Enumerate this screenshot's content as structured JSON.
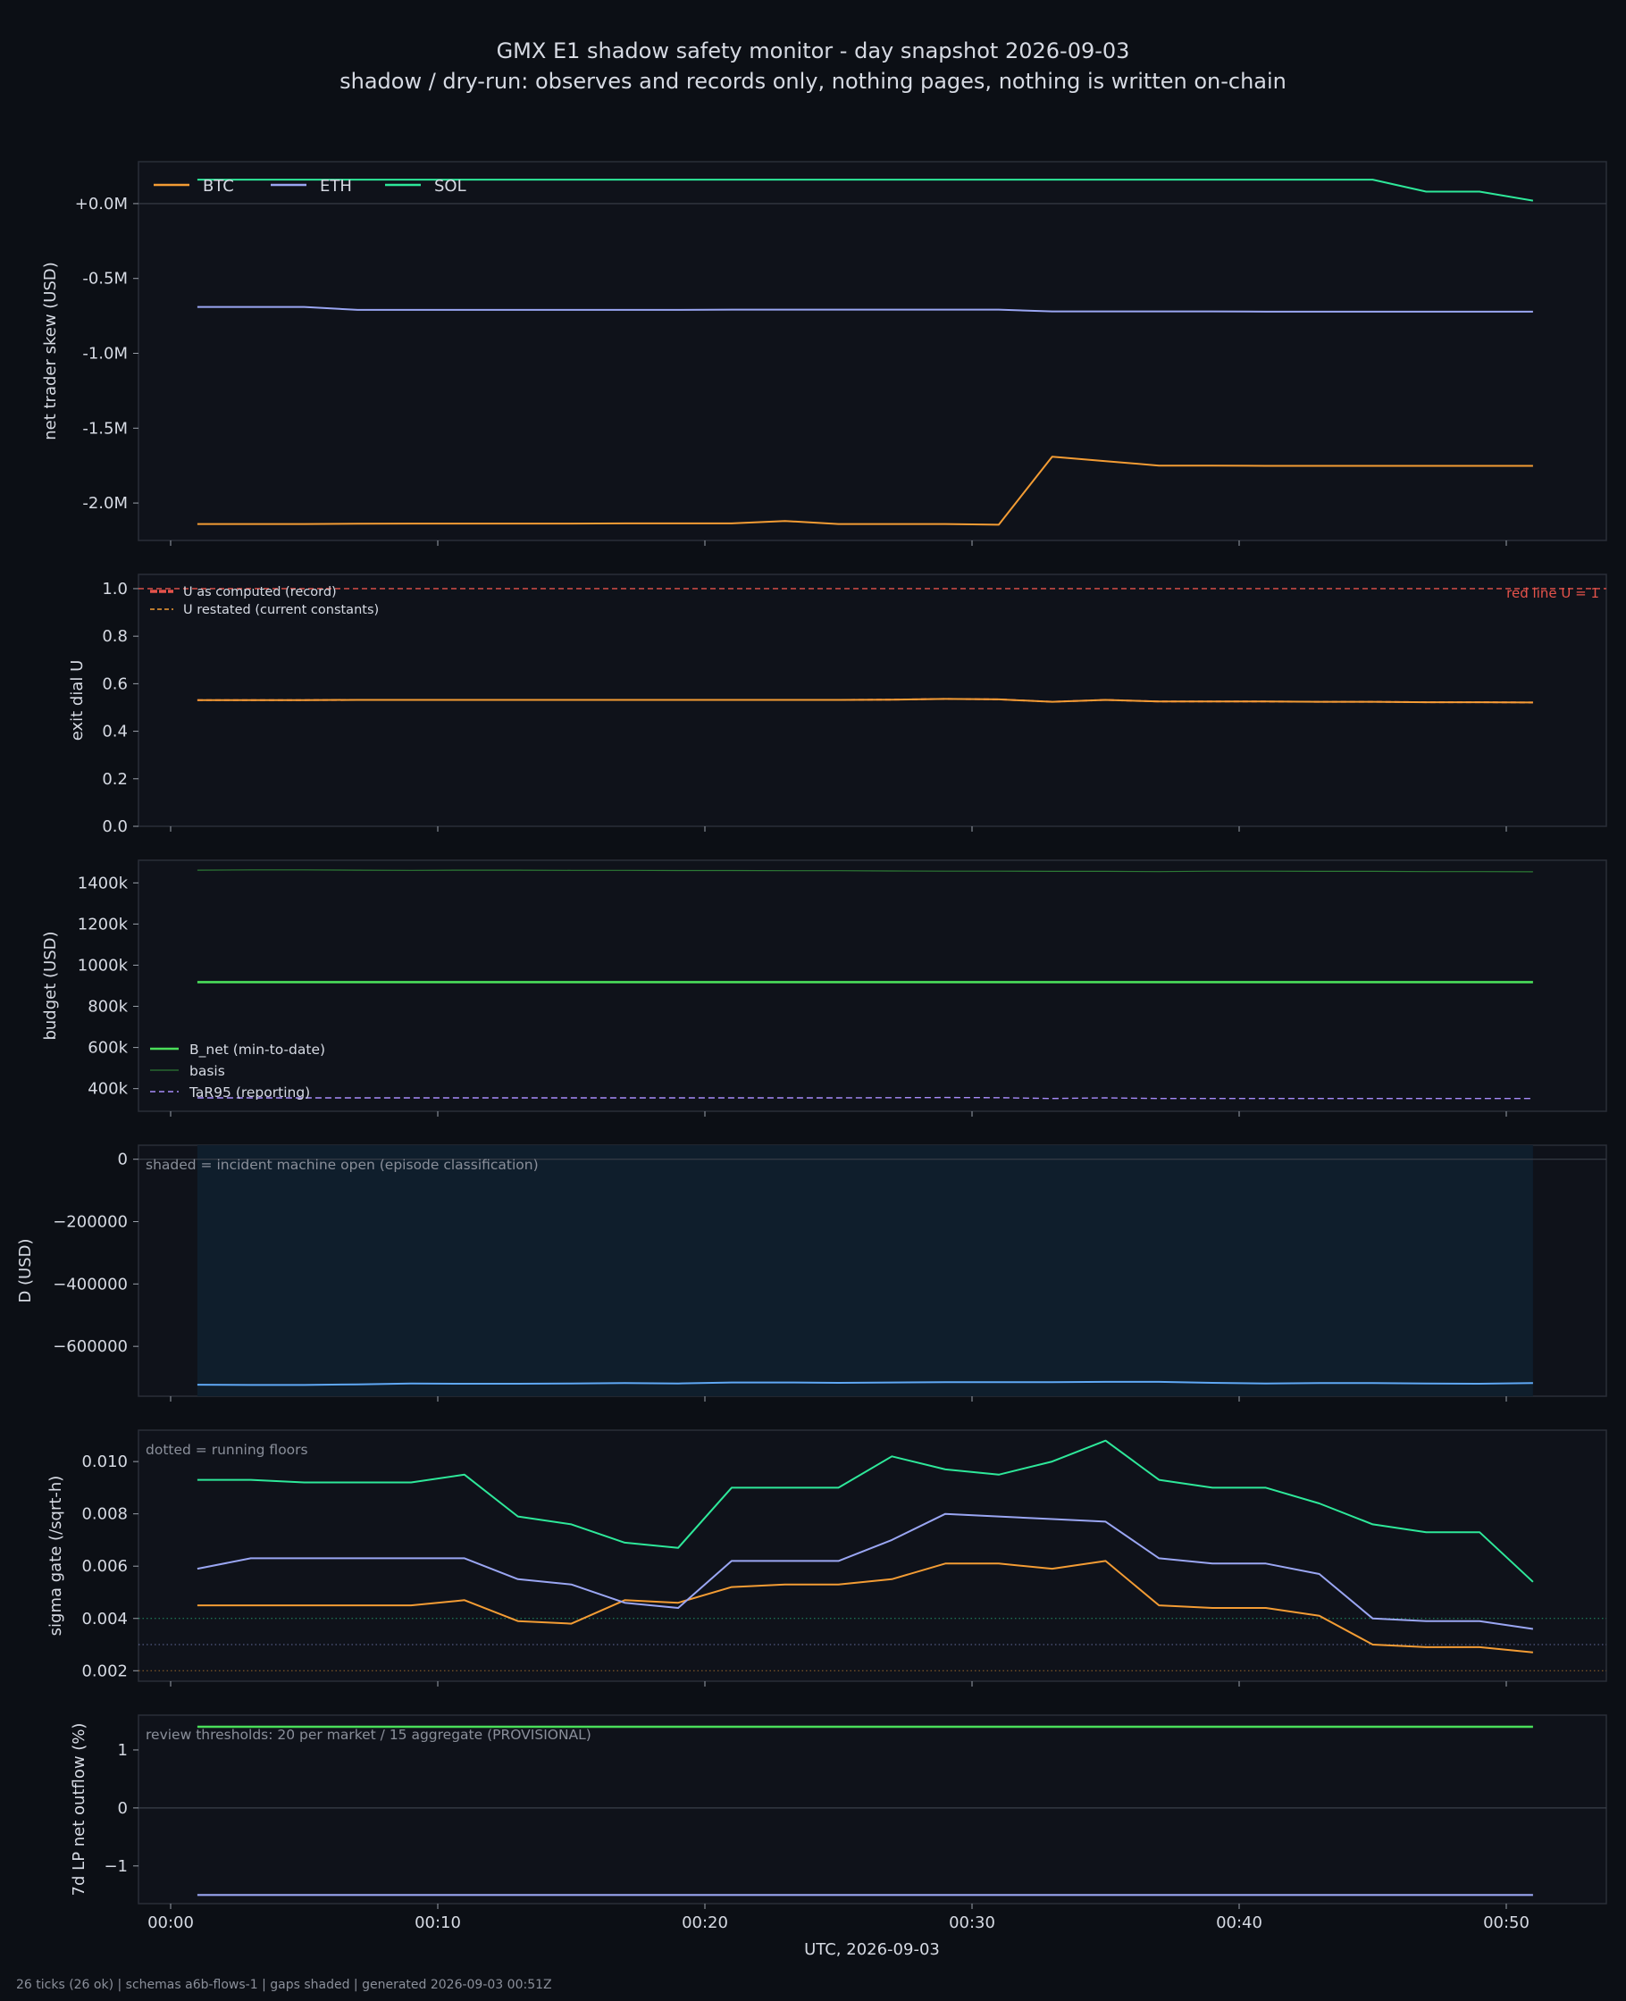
{
  "title": "GMX E1 shadow safety monitor - day snapshot 2026-09-03",
  "subtitle": "shadow / dry-run: observes and records only, nothing pages, nothing is written on-chain",
  "footer": "26 ticks (26 ok) | schemas a6b-flows-1 | gaps shaded | generated 2026-09-03 00:51Z",
  "colors": {
    "background": "#0c0f15",
    "panel": "#0f121a",
    "frame": "#2a2e38",
    "text": "#d6dae3",
    "muted": "#8a8f9a",
    "btc": "#f39c34",
    "eth": "#9aa6f3",
    "sol": "#2ee89a",
    "green": "#4ade5a",
    "basis_green": "#2c7a35",
    "tar": "#a78bfa",
    "red": "#e5534b",
    "d_blue": "#5fa8f5",
    "shade": "#0f1e2c"
  },
  "chart_data": {
    "type": "line",
    "x": [
      "00:01",
      "00:03",
      "00:05",
      "00:07",
      "00:09",
      "00:11",
      "00:13",
      "00:15",
      "00:17",
      "00:19",
      "00:21",
      "00:23",
      "00:25",
      "00:27",
      "00:29",
      "00:31",
      "00:33",
      "00:35",
      "00:37",
      "00:39",
      "00:41",
      "00:43",
      "00:45",
      "00:47",
      "00:49",
      "00:51"
    ],
    "xlabel": "UTC, 2026-09-03",
    "x_ticks": [
      "00:00",
      "00:10",
      "00:20",
      "00:30",
      "00:40",
      "00:50"
    ],
    "panels": [
      {
        "id": "skew",
        "ylabel": "net trader skew (USD)",
        "ylim": [
          -2.25,
          0.28
        ],
        "unit": "M USD",
        "y_ticks": [
          {
            "v": 0,
            "label": "+0.0M"
          },
          {
            "v": -0.5,
            "label": "-0.5M"
          },
          {
            "v": -1.0,
            "label": "-1.0M"
          },
          {
            "v": -1.5,
            "label": "-1.5M"
          },
          {
            "v": -2.0,
            "label": "-2.0M"
          }
        ],
        "zero_line": 0,
        "legend": "top-left, horizontal",
        "series": [
          {
            "name": "BTC",
            "color": "#f39c34",
            "values": [
              -2.14,
              -2.14,
              -2.14,
              -2.138,
              -2.137,
              -2.137,
              -2.137,
              -2.137,
              -2.136,
              -2.136,
              -2.136,
              -2.12,
              -2.14,
              -2.14,
              -2.14,
              -2.145,
              -1.69,
              -1.72,
              -1.75,
              -1.75,
              -1.752,
              -1.752,
              -1.752,
              -1.752,
              -1.752,
              -1.752
            ]
          },
          {
            "name": "ETH",
            "color": "#9aa6f3",
            "values": [
              -0.69,
              -0.69,
              -0.69,
              -0.71,
              -0.71,
              -0.71,
              -0.71,
              -0.71,
              -0.71,
              -0.71,
              -0.708,
              -0.708,
              -0.708,
              -0.708,
              -0.708,
              -0.708,
              -0.72,
              -0.72,
              -0.72,
              -0.72,
              -0.722,
              -0.722,
              -0.722,
              -0.722,
              -0.722,
              -0.722
            ]
          },
          {
            "name": "SOL",
            "color": "#2ee89a",
            "values": [
              0.16,
              0.16,
              0.16,
              0.16,
              0.16,
              0.16,
              0.16,
              0.16,
              0.16,
              0.16,
              0.16,
              0.16,
              0.16,
              0.16,
              0.16,
              0.16,
              0.16,
              0.16,
              0.16,
              0.16,
              0.16,
              0.16,
              0.16,
              0.08,
              0.08,
              0.02
            ]
          }
        ]
      },
      {
        "id": "exit",
        "ylabel": "exit dial U",
        "ylim": [
          0,
          1.06
        ],
        "y_ticks": [
          {
            "v": 0.0,
            "label": "0.0"
          },
          {
            "v": 0.2,
            "label": "0.2"
          },
          {
            "v": 0.4,
            "label": "0.4"
          },
          {
            "v": 0.6,
            "label": "0.6"
          },
          {
            "v": 0.8,
            "label": "0.8"
          },
          {
            "v": 1.0,
            "label": "1.0"
          }
        ],
        "red_line": {
          "value": 1.0,
          "label": "red line U = 1"
        },
        "legend": "top-left",
        "series": [
          {
            "name": "U as computed (record)",
            "color": "#e5534b",
            "dash": "6,4",
            "values": [
              0.531,
              0.531,
              0.531,
              0.532,
              0.532,
              0.532,
              0.532,
              0.532,
              0.532,
              0.532,
              0.532,
              0.532,
              0.532,
              0.533,
              0.536,
              0.534,
              0.524,
              0.532,
              0.525,
              0.525,
              0.525,
              0.524,
              0.524,
              0.522,
              0.522,
              0.521
            ]
          },
          {
            "name": "U restated (current constants)",
            "color": "#f39c34",
            "dash": "",
            "values": [
              0.531,
              0.531,
              0.531,
              0.532,
              0.532,
              0.532,
              0.532,
              0.532,
              0.532,
              0.532,
              0.532,
              0.532,
              0.532,
              0.533,
              0.536,
              0.534,
              0.524,
              0.532,
              0.525,
              0.525,
              0.525,
              0.524,
              0.524,
              0.522,
              0.522,
              0.521
            ]
          }
        ]
      },
      {
        "id": "budget",
        "ylabel": "budget (USD)",
        "ylim": [
          290,
          1510
        ],
        "y_ticks": [
          {
            "v": 400,
            "label": "400k"
          },
          {
            "v": 600,
            "label": "600k"
          },
          {
            "v": 800,
            "label": "800k"
          },
          {
            "v": 1000,
            "label": "1000k"
          },
          {
            "v": 1200,
            "label": "1200k"
          },
          {
            "v": 1400,
            "label": "1400k"
          }
        ],
        "legend": "bottom-left",
        "series": [
          {
            "name": "B_net (min-to-date)",
            "color": "#4ade5a",
            "width": 2.6,
            "values": [
              918,
              918,
              918,
              918,
              918,
              918,
              918,
              918,
              918,
              918,
              918,
              918,
              918,
              918,
              918,
              918,
              918,
              918,
              918,
              918,
              918,
              918,
              918,
              918,
              918,
              918
            ]
          },
          {
            "name": "basis",
            "color": "#2c7a35",
            "width": 1.2,
            "values": [
              1462,
              1463,
              1463,
              1462,
              1461,
              1462,
              1462,
              1461,
              1461,
              1460,
              1460,
              1459,
              1459,
              1458,
              1457,
              1457,
              1456,
              1456,
              1455,
              1457,
              1457,
              1456,
              1456,
              1455,
              1455,
              1454
            ]
          },
          {
            "name": "TaR95 (reporting)",
            "color": "#a78bfa",
            "dash": "7,4",
            "width": 1.4,
            "values": [
              355,
              355,
              355,
              355,
              355,
              355,
              355,
              355,
              355,
              355,
              355,
              355,
              355,
              356,
              357,
              356,
              352,
              355,
              352,
              352,
              352,
              352,
              352,
              352,
              352,
              352
            ]
          }
        ]
      },
      {
        "id": "d",
        "ylabel": "D (USD)",
        "ylim": [
          -760000,
          45000
        ],
        "y_ticks": [
          {
            "v": 0,
            "label": "0"
          },
          {
            "v": -200000,
            "label": "−200000"
          },
          {
            "v": -400000,
            "label": "−400000"
          },
          {
            "v": -600000,
            "label": "−600000"
          }
        ],
        "zero_line": 0,
        "annotation": "shaded = incident machine open (episode classification)",
        "shaded_span": [
          "00:01",
          "00:51"
        ],
        "series": [
          {
            "name": "D",
            "color": "#5fa8f5",
            "values": [
              -723000,
              -724000,
              -724000,
              -722000,
              -719000,
              -720000,
              -720000,
              -719000,
              -718000,
              -719000,
              -716000,
              -716000,
              -717000,
              -716000,
              -715000,
              -715000,
              -715000,
              -714000,
              -714000,
              -717000,
              -719000,
              -718000,
              -718000,
              -719000,
              -720000,
              -718000
            ]
          }
        ]
      },
      {
        "id": "sigma",
        "ylabel": "sigma gate (/sqrt-h)",
        "ylim": [
          0.0016,
          0.0112
        ],
        "y_ticks": [
          {
            "v": 0.002,
            "label": "0.002"
          },
          {
            "v": 0.004,
            "label": "0.004"
          },
          {
            "v": 0.006,
            "label": "0.006"
          },
          {
            "v": 0.008,
            "label": "0.008"
          },
          {
            "v": 0.01,
            "label": "0.010"
          }
        ],
        "annotation": "dotted = running floors",
        "floors": [
          {
            "name": "SOL floor",
            "value": 0.004,
            "color": "#2ee89a"
          },
          {
            "name": "ETH floor",
            "value": 0.003,
            "color": "#9aa6f3"
          },
          {
            "name": "BTC floor",
            "value": 0.002,
            "color": "#f39c34"
          }
        ],
        "series": [
          {
            "name": "BTC",
            "color": "#f39c34",
            "values": [
              0.0045,
              0.0045,
              0.0045,
              0.0045,
              0.0045,
              0.0047,
              0.0039,
              0.0038,
              0.0047,
              0.0046,
              0.0052,
              0.0053,
              0.0053,
              0.0055,
              0.0061,
              0.0061,
              0.0059,
              0.0062,
              0.0045,
              0.0044,
              0.0044,
              0.0041,
              0.003,
              0.0029,
              0.0029,
              0.0027
            ]
          },
          {
            "name": "ETH",
            "color": "#9aa6f3",
            "values": [
              0.0059,
              0.0063,
              0.0063,
              0.0063,
              0.0063,
              0.0063,
              0.0055,
              0.0053,
              0.0046,
              0.0044,
              0.0062,
              0.0062,
              0.0062,
              0.007,
              0.008,
              0.0079,
              0.0078,
              0.0077,
              0.0063,
              0.0061,
              0.0061,
              0.0057,
              0.004,
              0.0039,
              0.0039,
              0.0036
            ]
          },
          {
            "name": "SOL",
            "color": "#2ee89a",
            "values": [
              0.0093,
              0.0093,
              0.0092,
              0.0092,
              0.0092,
              0.0095,
              0.0079,
              0.0076,
              0.0069,
              0.0067,
              0.009,
              0.009,
              0.009,
              0.0102,
              0.0097,
              0.0095,
              0.01,
              0.0108,
              0.0093,
              0.009,
              0.009,
              0.0084,
              0.0076,
              0.0073,
              0.0073,
              0.0054
            ]
          }
        ]
      },
      {
        "id": "lp",
        "ylabel": "7d LP net outflow (%)",
        "ylim": [
          -1.65,
          1.6
        ],
        "y_ticks": [
          {
            "v": -1,
            "label": "−1"
          },
          {
            "v": 0,
            "label": "0"
          },
          {
            "v": 1,
            "label": "1"
          }
        ],
        "zero_line": 0,
        "annotation": "review thresholds: 20 per market / 15 aggregate (PROVISIONAL)",
        "series": [
          {
            "name": "top",
            "color": "#4ade5a",
            "width": 2.6,
            "values": [
              1.4,
              1.4,
              1.4,
              1.4,
              1.4,
              1.4,
              1.4,
              1.4,
              1.4,
              1.4,
              1.4,
              1.4,
              1.4,
              1.4,
              1.4,
              1.4,
              1.4,
              1.4,
              1.4,
              1.4,
              1.4,
              1.4,
              1.4,
              1.4,
              1.4,
              1.4
            ]
          },
          {
            "name": "bottom",
            "color": "#9aa6f3",
            "width": 2.2,
            "values": [
              -1.5,
              -1.5,
              -1.5,
              -1.5,
              -1.5,
              -1.5,
              -1.5,
              -1.5,
              -1.5,
              -1.5,
              -1.5,
              -1.5,
              -1.5,
              -1.5,
              -1.5,
              -1.5,
              -1.5,
              -1.5,
              -1.5,
              -1.5,
              -1.5,
              -1.5,
              -1.5,
              -1.5,
              -1.5,
              -1.5
            ]
          }
        ]
      }
    ]
  }
}
